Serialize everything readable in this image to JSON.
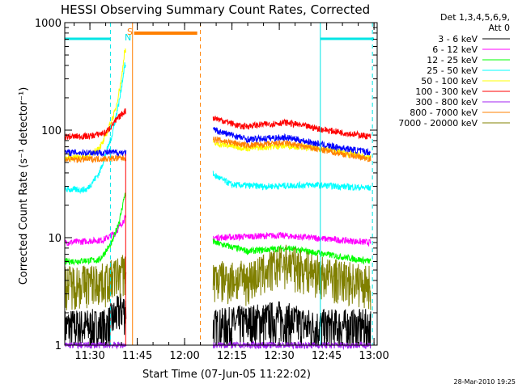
{
  "chart_data": {
    "type": "line",
    "title": "HESSI Observing Summary Count Rates, Corrected",
    "xlabel": "Start Time (07-Jun-05 11:22:02)",
    "ylabel": "Corrected Count Rate (s⁻¹ detector⁻¹)",
    "y_scale": "log",
    "ylim": [
      1,
      1000
    ],
    "xlim": [
      "11:22:02",
      "13:01:00"
    ],
    "x_ticks": [
      "11:30",
      "11:45",
      "12:00",
      "12:15",
      "12:30",
      "12:45",
      "13:00"
    ],
    "y_ticks": [
      "1",
      "10",
      "100",
      "1000"
    ],
    "detectors_label": "Det 1,3,4,5,6,9,",
    "attenuator_label": "Att 0",
    "timestamp": "28-Mar-2010 19:25",
    "flags": {
      "saa_label": "S",
      "night_label": "N",
      "night_color": "#00e5e5",
      "saa_color": "#ff8000",
      "night_intervals": [
        [
          "11:22:02",
          "11:36:30"
        ],
        [
          "12:43:00",
          "13:00:00"
        ]
      ],
      "saa_intervals": [
        [
          "11:44:00",
          "12:04:00"
        ]
      ]
    },
    "event_lines": {
      "night_boundaries": [
        "11:36:30",
        "12:43:00",
        "12:59:30"
      ],
      "saa_boundaries": [
        "11:43:30",
        "12:05:00"
      ],
      "flare_marker": "11:41:20",
      "data_gap": [
        "11:41:30",
        "12:09:00"
      ]
    },
    "series": [
      {
        "name": "3 - 6 keV",
        "color": "#000000",
        "style": "noisy-low",
        "points": [
          [
            "11:22:02",
            1.5
          ],
          [
            "11:35:00",
            1.5
          ],
          [
            "11:40:00",
            2.2
          ],
          [
            "12:09:30",
            1.5
          ],
          [
            "12:30:00",
            1.8
          ],
          [
            "12:40:00",
            1.5
          ],
          [
            "12:59:00",
            1.5
          ]
        ]
      },
      {
        "name": "6 - 12 keV",
        "color": "#ff00ff",
        "points": [
          [
            "11:22:02",
            9
          ],
          [
            "11:34:00",
            9.5
          ],
          [
            "11:38:00",
            11
          ],
          [
            "11:41:00",
            15
          ],
          [
            "12:09:30",
            10
          ],
          [
            "12:30:00",
            10.5
          ],
          [
            "12:40:00",
            10
          ],
          [
            "12:59:00",
            9
          ]
        ]
      },
      {
        "name": "12 - 25 keV",
        "color": "#00ff00",
        "points": [
          [
            "11:22:02",
            6
          ],
          [
            "11:33:00",
            6.2
          ],
          [
            "11:37:00",
            9
          ],
          [
            "11:39:30",
            15
          ],
          [
            "11:41:00",
            25
          ],
          [
            "12:09:30",
            9
          ],
          [
            "12:20:00",
            7.5
          ],
          [
            "12:32:00",
            8
          ],
          [
            "12:45:00",
            7
          ],
          [
            "12:59:00",
            6
          ]
        ]
      },
      {
        "name": "25 - 50 keV",
        "color": "#00ffff",
        "points": [
          [
            "11:22:02",
            28
          ],
          [
            "11:29:00",
            28
          ],
          [
            "11:33:00",
            40
          ],
          [
            "11:37:00",
            90
          ],
          [
            "11:39:30",
            200
          ],
          [
            "11:41:00",
            400
          ],
          [
            "12:09:30",
            38
          ],
          [
            "12:15:00",
            31
          ],
          [
            "12:25:00",
            30
          ],
          [
            "12:40:00",
            31
          ],
          [
            "12:59:00",
            29
          ]
        ]
      },
      {
        "name": "50 - 100 keV",
        "color": "#ffff00",
        "points": [
          [
            "11:22:02",
            55
          ],
          [
            "11:30:00",
            57
          ],
          [
            "11:34:00",
            75
          ],
          [
            "11:38:00",
            150
          ],
          [
            "11:40:00",
            300
          ],
          [
            "11:41:00",
            550
          ],
          [
            "12:09:30",
            75
          ],
          [
            "12:20:00",
            68
          ],
          [
            "12:33:00",
            72
          ],
          [
            "12:45:00",
            66
          ],
          [
            "12:59:00",
            55
          ]
        ]
      },
      {
        "name": "100 - 300 keV",
        "color": "#ff0000",
        "points": [
          [
            "11:22:02",
            87
          ],
          [
            "11:30:00",
            88
          ],
          [
            "11:35:00",
            95
          ],
          [
            "11:39:00",
            130
          ],
          [
            "11:41:00",
            150
          ],
          [
            "12:09:30",
            130
          ],
          [
            "12:18:00",
            108
          ],
          [
            "12:32:00",
            118
          ],
          [
            "12:45:00",
            100
          ],
          [
            "12:59:00",
            87
          ]
        ]
      },
      {
        "name": "300 - 800 keV",
        "color": "#a020f0",
        "points": [
          [
            "11:22:02",
            1
          ],
          [
            "12:59:00",
            1
          ]
        ]
      },
      {
        "name": "800 - 7000 keV",
        "color": "#ff8000",
        "points": [
          [
            "11:22:02",
            53
          ],
          [
            "11:41:00",
            55
          ],
          [
            "12:09:30",
            82
          ],
          [
            "12:20:00",
            72
          ],
          [
            "12:32:00",
            76
          ],
          [
            "12:45:00",
            64
          ],
          [
            "12:59:00",
            54
          ]
        ]
      },
      {
        "name": "7000 - 20000 keV",
        "color": "#808000",
        "style": "noisy-low",
        "points": [
          [
            "11:22:02",
            3.8
          ],
          [
            "11:35:00",
            4
          ],
          [
            "11:41:00",
            5
          ],
          [
            "12:09:30",
            4.2
          ],
          [
            "12:20:00",
            4.2
          ],
          [
            "12:32:00",
            6
          ],
          [
            "12:45:00",
            4.5
          ],
          [
            "12:59:00",
            3.8
          ]
        ]
      },
      {
        "name": "blue-background",
        "color": "#0000ff",
        "legend": false,
        "points": [
          [
            "11:22:02",
            62
          ],
          [
            "11:41:00",
            62
          ],
          [
            "12:09:30",
            100
          ],
          [
            "12:20:00",
            82
          ],
          [
            "12:32:00",
            86
          ],
          [
            "12:45:00",
            72
          ],
          [
            "12:59:00",
            62
          ]
        ]
      }
    ]
  }
}
